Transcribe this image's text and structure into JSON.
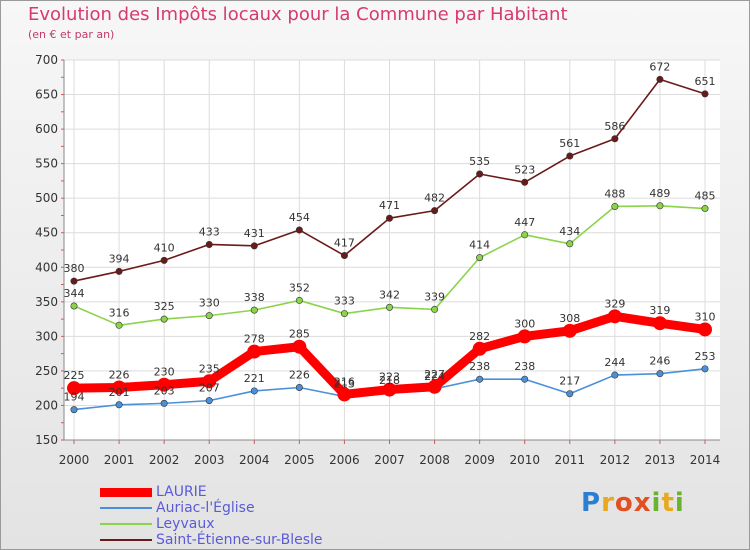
{
  "chart_data": {
    "type": "line",
    "title": "Evolution des Impôts locaux pour la Commune par Habitant",
    "subtitle": "(en € et par an)",
    "x": [
      "2000",
      "2001",
      "2002",
      "2003",
      "2004",
      "2005",
      "2006",
      "2007",
      "2008",
      "2009",
      "2010",
      "2011",
      "2012",
      "2013",
      "2014"
    ],
    "y_ticks": [
      150,
      200,
      250,
      300,
      350,
      400,
      450,
      500,
      550,
      600,
      650,
      700
    ],
    "ylim": [
      150,
      700
    ],
    "grid": true,
    "legend_position": "bottom-left",
    "series": [
      {
        "name": "LAURIE",
        "color": "#ff0000",
        "emphasis": true,
        "values": [
          225,
          226,
          230,
          235,
          278,
          285,
          216,
          223,
          227,
          282,
          300,
          308,
          329,
          319,
          310
        ]
      },
      {
        "name": "Auriac-l'Église",
        "color": "#4a90d9",
        "emphasis": false,
        "values": [
          194,
          201,
          203,
          207,
          221,
          226,
          213,
          218,
          224,
          238,
          238,
          217,
          244,
          246,
          253
        ]
      },
      {
        "name": "Leyvaux",
        "color": "#8bd44a",
        "emphasis": false,
        "values": [
          344,
          316,
          325,
          330,
          338,
          352,
          333,
          342,
          339,
          414,
          447,
          434,
          488,
          489,
          485
        ]
      },
      {
        "name": "Saint-Étienne-sur-Blesle",
        "color": "#6b1a1a",
        "emphasis": false,
        "values": [
          380,
          394,
          410,
          433,
          431,
          454,
          417,
          471,
          482,
          535,
          523,
          561,
          586,
          672,
          651
        ]
      }
    ]
  },
  "logo_text": "Proxiti"
}
